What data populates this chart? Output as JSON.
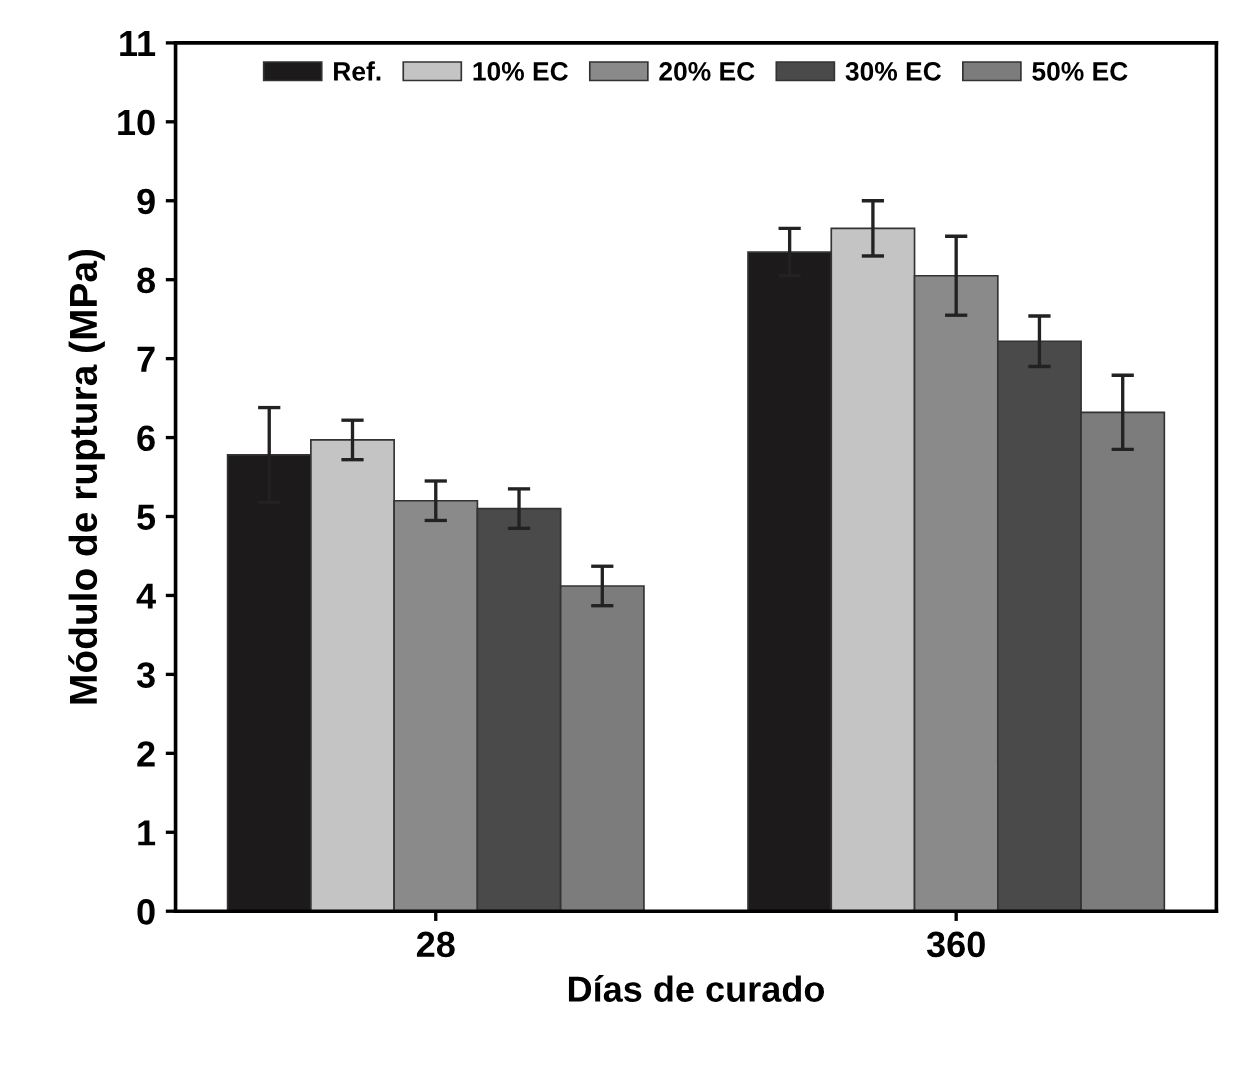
{
  "chart_data": {
    "type": "bar",
    "xlabel": "Días de curado",
    "ylabel": "Módulo de ruptura (MPa)",
    "categories": [
      "28",
      "360"
    ],
    "series": [
      {
        "name": "Ref.",
        "color": "#1c1a1b",
        "values": [
          5.78,
          8.35
        ],
        "errors": [
          0.6,
          0.3
        ]
      },
      {
        "name": "10% EC",
        "color": "#c4c4c4",
        "values": [
          5.97,
          8.65
        ],
        "errors": [
          0.25,
          0.35
        ]
      },
      {
        "name": "20% EC",
        "color": "#8a8a8a",
        "values": [
          5.2,
          8.05
        ],
        "errors": [
          0.25,
          0.5
        ]
      },
      {
        "name": "30% EC",
        "color": "#4a4a4a",
        "values": [
          5.1,
          7.22
        ],
        "errors": [
          0.25,
          0.32
        ]
      },
      {
        "name": "50% EC",
        "color": "#7c7c7c",
        "values": [
          4.12,
          6.32
        ],
        "errors": [
          0.25,
          0.47
        ]
      }
    ],
    "ylim": [
      0,
      11
    ],
    "yticks": [
      0,
      1,
      2,
      3,
      4,
      5,
      6,
      7,
      8,
      9,
      10,
      11
    ],
    "grid": false,
    "legend": "top"
  }
}
